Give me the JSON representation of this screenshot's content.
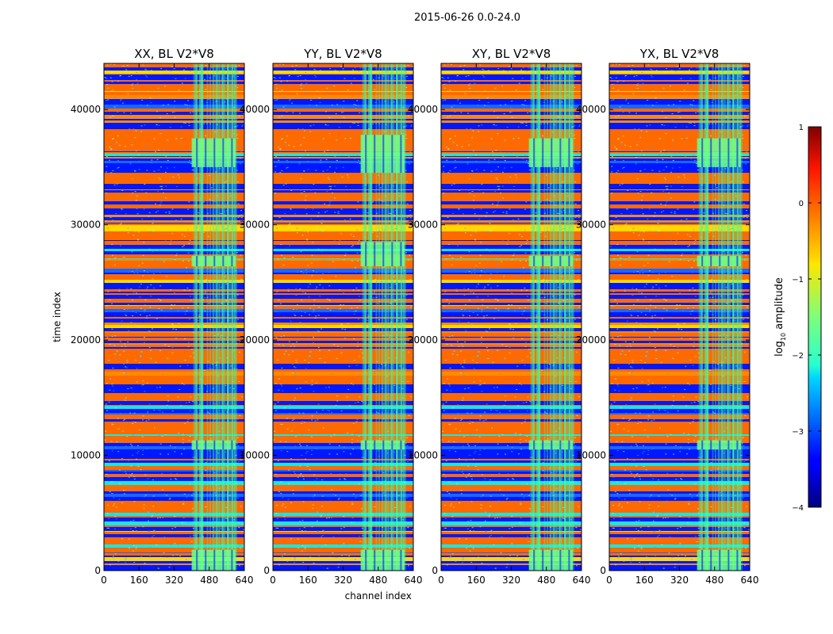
{
  "figure": {
    "suptitle": "2015-06-26 0.0-24.0"
  },
  "chart_data": [
    {
      "type": "heatmap",
      "title": "XX, BL V2*V8",
      "xlabel": "",
      "ylabel": "time index",
      "xlim": [
        0,
        640
      ],
      "ylim": [
        0,
        44000
      ],
      "xticks": [
        "0",
        "160",
        "320",
        "480",
        "640"
      ],
      "yticks": [
        "0",
        "10000",
        "20000",
        "30000",
        "40000"
      ],
      "rfi_channel_range": [
        400,
        600
      ],
      "bright_epochs": [
        [
          0,
          1800
        ],
        [
          10500,
          11300
        ],
        [
          26400,
          27300
        ],
        [
          35000,
          37500
        ]
      ]
    },
    {
      "type": "heatmap",
      "title": "YY, BL V2*V8",
      "xlabel": "channel index",
      "ylabel": "",
      "xlim": [
        0,
        640
      ],
      "ylim": [
        0,
        44000
      ],
      "xticks": [
        "0",
        "160",
        "320",
        "480",
        "640"
      ],
      "yticks": [
        "0",
        "10000",
        "20000",
        "30000",
        "40000"
      ],
      "rfi_channel_range": [
        400,
        600
      ],
      "bright_epochs": [
        [
          0,
          1800
        ],
        [
          10500,
          11300
        ],
        [
          26400,
          28500
        ],
        [
          34500,
          37800
        ]
      ]
    },
    {
      "type": "heatmap",
      "title": "XY, BL V2*V8",
      "xlabel": "",
      "ylabel": "",
      "xlim": [
        0,
        640
      ],
      "ylim": [
        0,
        44000
      ],
      "xticks": [
        "0",
        "160",
        "320",
        "480",
        "640"
      ],
      "yticks": [
        "0",
        "10000",
        "20000",
        "30000",
        "40000"
      ],
      "rfi_channel_range": [
        400,
        600
      ],
      "bright_epochs": [
        [
          0,
          1800
        ],
        [
          10500,
          11300
        ],
        [
          26400,
          27300
        ],
        [
          35000,
          37500
        ]
      ]
    },
    {
      "type": "heatmap",
      "title": "YX, BL V2*V8",
      "xlabel": "",
      "ylabel": "",
      "xlim": [
        0,
        640
      ],
      "ylim": [
        0,
        44000
      ],
      "xticks": [
        "0",
        "160",
        "320",
        "480",
        "640"
      ],
      "yticks": [
        "0",
        "10000",
        "20000",
        "30000",
        "40000"
      ],
      "rfi_channel_range": [
        400,
        600
      ],
      "bright_epochs": [
        [
          0,
          1800
        ],
        [
          10500,
          11300
        ],
        [
          26400,
          27300
        ],
        [
          35000,
          37500
        ]
      ]
    }
  ],
  "colorbar": {
    "label_prefix": "log",
    "label_sub": "10",
    "label_suffix": " amplitude",
    "range": [
      -4,
      1
    ],
    "ticks": [
      "1",
      "0",
      "−1",
      "−2",
      "−3",
      "−4"
    ],
    "colormap": "jet"
  },
  "colors": {
    "low": "#0000ff",
    "high": "#ff6600",
    "rfi": "#40ffa0"
  }
}
